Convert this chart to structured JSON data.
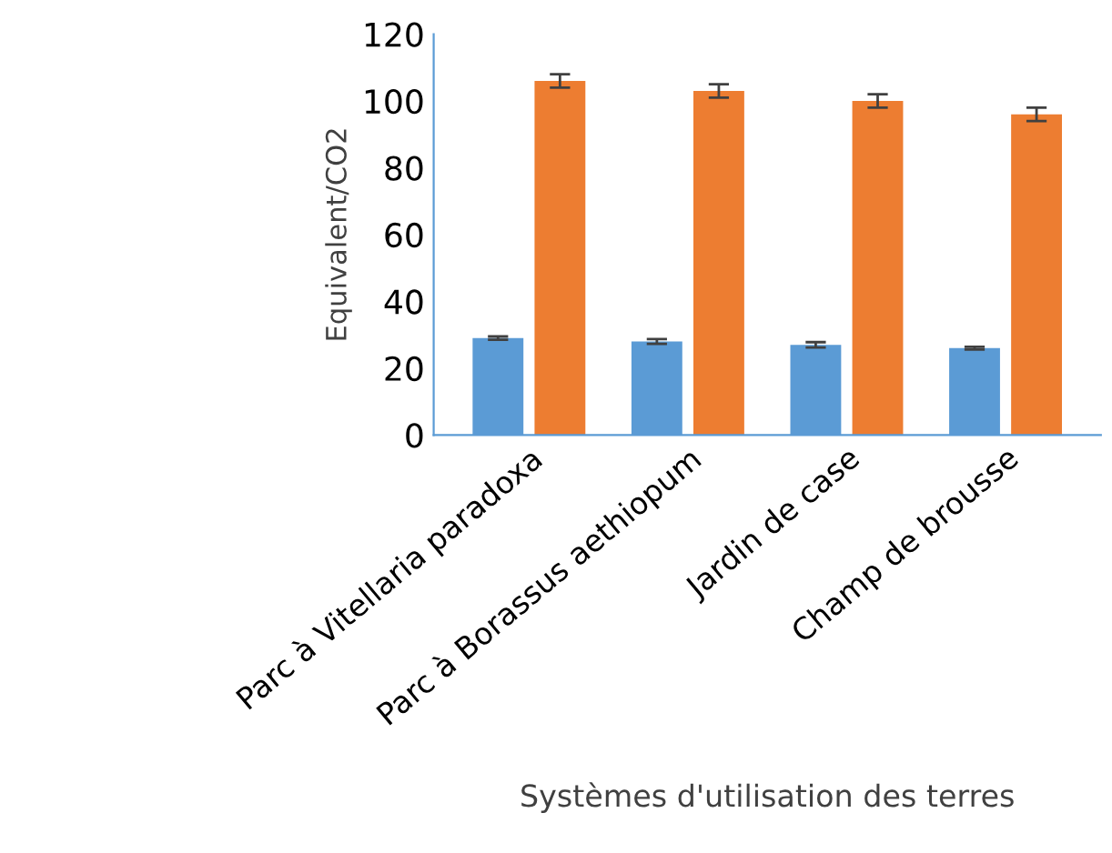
{
  "chart_data": {
    "type": "bar",
    "xlabel": "Systèmes d'utilisation des terres",
    "ylabel": "Equivalent/CO2",
    "categories": [
      "Parc à Vitellaria paradoxa",
      "Parc à Borassus aethiopum",
      "Jardin de case",
      "Champ de brousse"
    ],
    "series": [
      {
        "color": "#5b9bd5",
        "values": [
          29,
          28,
          27,
          26
        ],
        "errors": [
          0.5,
          0.7,
          0.8,
          0.4
        ]
      },
      {
        "color": "#ed7d31",
        "values": [
          106,
          103,
          100,
          96
        ],
        "errors": [
          2,
          2,
          2,
          2
        ]
      }
    ],
    "ylim": [
      0,
      120
    ],
    "yticks": [
      0,
      20,
      40,
      60,
      80,
      100,
      120
    ],
    "grid": false,
    "legend": false
  }
}
